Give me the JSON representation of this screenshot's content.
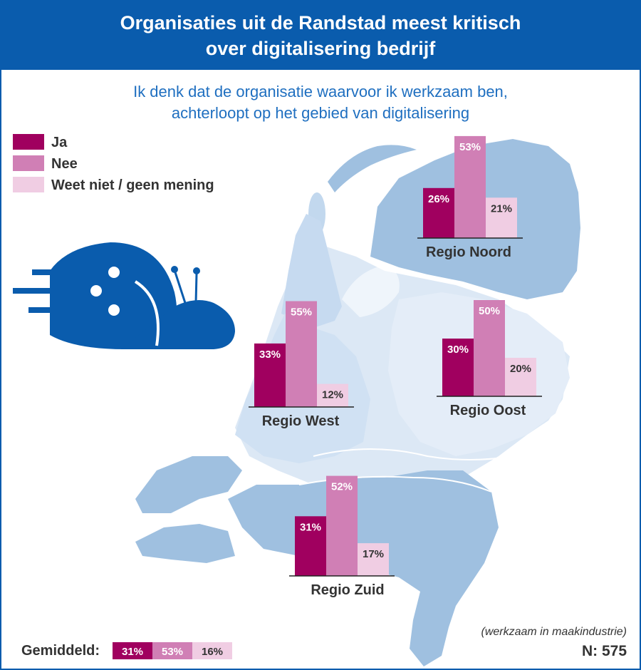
{
  "header": {
    "title_line1": "Organisaties uit de Randstad meest kritisch",
    "title_line2": "over digitalisering bedrijf"
  },
  "subtitle": {
    "line1": "Ik denk dat de organisatie waarvoor ik werkzaam ben,",
    "line2": "achterloopt op het gebied van digitalisering"
  },
  "colors": {
    "ja": "#a0005f",
    "nee": "#d07fb5",
    "weet_niet": "#f0cde3",
    "header_bg": "#0a5cad",
    "map_dark": "#9fc0e0",
    "map_light": "#dce8f5",
    "snail": "#0a5cad"
  },
  "chart_data": {
    "type": "bar",
    "title": "Organisaties uit de Randstad meest kritisch over digitalisering bedrijf",
    "subtitle": "Ik denk dat de organisatie waarvoor ik werkzaam ben, achterloopt op het gebied van digitalisering",
    "categories": [
      "Regio Noord",
      "Regio West",
      "Regio Oost",
      "Regio Zuid"
    ],
    "series": [
      {
        "name": "Ja",
        "values": [
          26,
          33,
          30,
          31
        ]
      },
      {
        "name": "Nee",
        "values": [
          53,
          55,
          50,
          52
        ]
      },
      {
        "name": "Weet niet / geen mening",
        "values": [
          21,
          12,
          20,
          17
        ]
      }
    ],
    "unit": "%",
    "average": {
      "label": "Gemiddeld:",
      "values": [
        31,
        53,
        16
      ]
    },
    "note": "(werkzaam in maakindustrie)",
    "n_label": "N: 575",
    "legend_position": "top-left"
  }
}
